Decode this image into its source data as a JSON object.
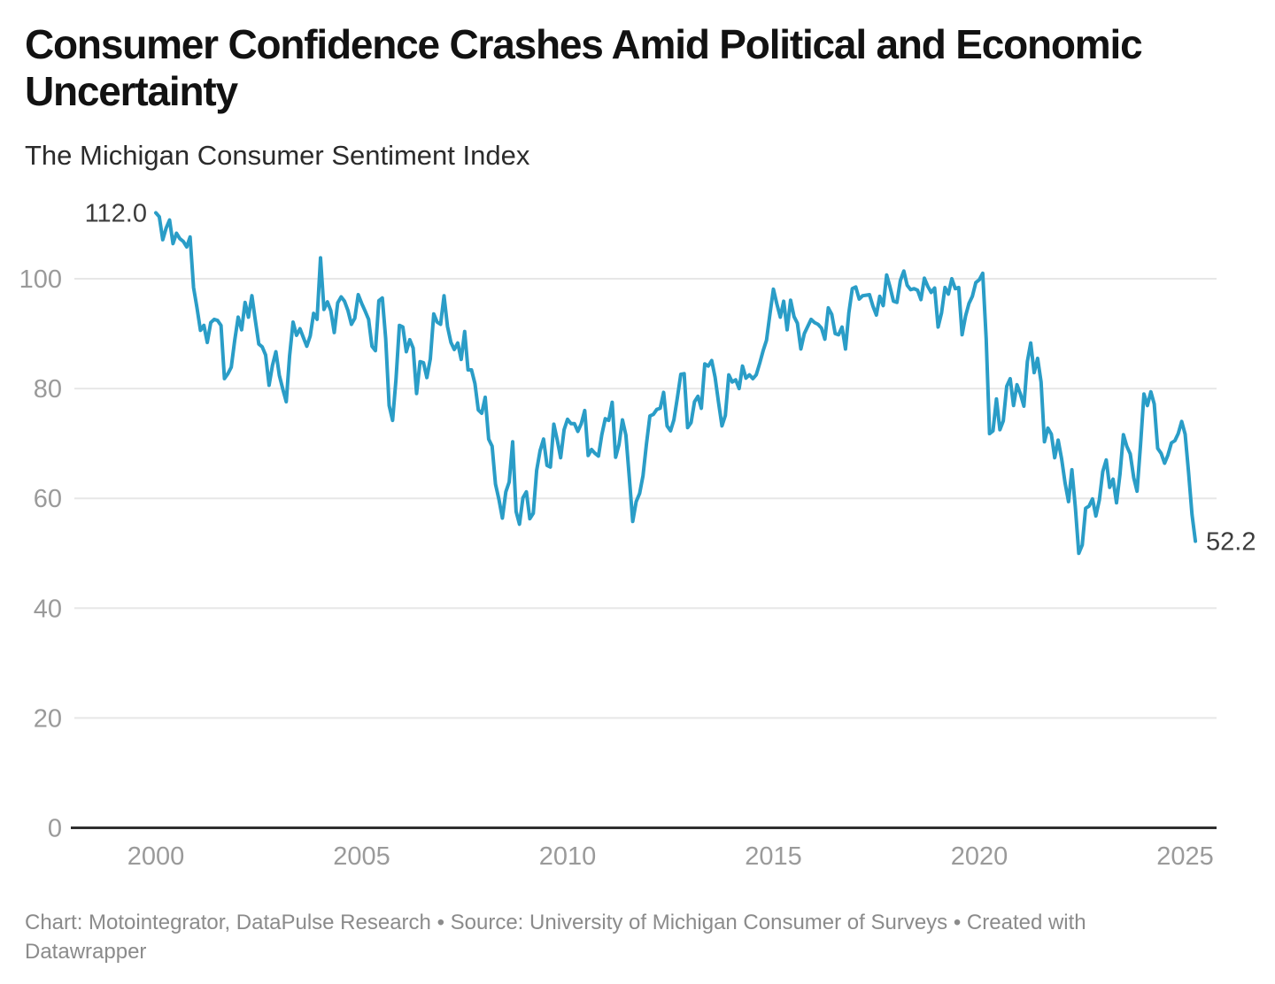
{
  "header": {
    "title": "Consumer Confidence Crashes Amid Political and Economic\nUncertainty",
    "subtitle": "The Michigan Consumer Sentiment Index"
  },
  "footer": {
    "text": "Chart: Motointegrator, DataPulse Research • Source: University of Michigan Consumer of Surveys • Created with\nDatawrapper"
  },
  "chart_data": {
    "type": "line",
    "title": "Consumer Confidence Crashes Amid Political and Economic Uncertainty",
    "subtitle": "The Michigan Consumer Sentiment Index",
    "start_label": "112.0",
    "end_label": "52.2",
    "y_ticks": [
      0,
      20,
      40,
      60,
      80,
      100
    ],
    "x_ticks": [
      2000,
      2005,
      2010,
      2015,
      2020,
      2025
    ],
    "ylim": [
      0,
      117
    ],
    "xlim": [
      1998,
      2025.8
    ],
    "grid": "horizontal",
    "legend": "none",
    "line_color": "#2A9DC7",
    "baseline_color": "#2f2f2f",
    "grid_color": "#e7e7e7",
    "axis_label_color": "#9a9a9a",
    "value_label_color": "#3c3c3c",
    "series": [
      {
        "name": "Michigan Consumer Sentiment Index",
        "frequency": "monthly",
        "x_start": 2000.0,
        "x_end": 2025.25,
        "values": [
          112.0,
          111.3,
          107.1,
          109.2,
          110.7,
          106.4,
          108.3,
          107.3,
          106.8,
          105.8,
          107.6,
          98.4,
          94.7,
          90.6,
          91.5,
          88.4,
          92.0,
          92.6,
          92.4,
          91.5,
          81.8,
          82.7,
          83.9,
          88.8,
          93.0,
          90.7,
          95.7,
          93.0,
          96.9,
          92.4,
          88.1,
          87.6,
          86.1,
          80.6,
          84.2,
          86.7,
          82.4,
          79.9,
          77.6,
          86.0,
          92.1,
          89.7,
          90.9,
          89.3,
          87.7,
          89.6,
          93.7,
          92.6,
          103.8,
          94.4,
          95.8,
          94.2,
          90.2,
          95.6,
          96.7,
          95.9,
          94.2,
          91.7,
          92.8,
          97.1,
          95.5,
          94.1,
          92.6,
          87.7,
          86.9,
          96.0,
          96.5,
          89.1,
          76.9,
          74.2,
          81.6,
          91.5,
          91.2,
          86.7,
          88.9,
          87.4,
          79.1,
          84.9,
          84.7,
          82.0,
          85.4,
          93.6,
          92.1,
          91.7,
          96.9,
          91.3,
          88.4,
          87.1,
          88.3,
          85.3,
          90.4,
          83.4,
          83.4,
          80.9,
          76.1,
          75.5,
          78.4,
          70.8,
          69.5,
          62.6,
          59.8,
          56.4,
          61.2,
          63.0,
          70.3,
          57.6,
          55.3,
          60.1,
          61.2,
          56.3,
          57.3,
          65.1,
          68.7,
          70.8,
          66.0,
          65.7,
          73.5,
          70.6,
          67.4,
          72.5,
          74.4,
          73.6,
          73.6,
          72.2,
          73.6,
          76.0,
          67.8,
          68.9,
          68.2,
          67.7,
          71.6,
          74.5,
          74.2,
          77.5,
          67.5,
          69.8,
          74.3,
          71.5,
          63.7,
          55.8,
          59.4,
          60.9,
          64.1,
          69.9,
          75.0,
          75.3,
          76.2,
          76.4,
          79.3,
          73.2,
          72.3,
          74.3,
          78.3,
          82.6,
          82.7,
          72.9,
          73.8,
          77.6,
          78.6,
          76.4,
          84.5,
          84.1,
          85.1,
          82.1,
          77.5,
          73.2,
          75.1,
          82.5,
          81.2,
          81.6,
          80.0,
          84.1,
          81.9,
          82.5,
          81.8,
          82.5,
          84.6,
          86.9,
          88.8,
          93.6,
          98.1,
          95.4,
          93.0,
          95.9,
          90.7,
          96.1,
          93.1,
          91.9,
          87.2,
          90.0,
          91.3,
          92.6,
          92.0,
          91.7,
          91.0,
          89.0,
          94.7,
          93.5,
          90.0,
          89.8,
          91.2,
          87.2,
          93.8,
          98.2,
          98.5,
          96.3,
          96.9,
          97.0,
          97.1,
          95.0,
          93.4,
          96.8,
          95.1,
          100.7,
          98.5,
          95.9,
          95.7,
          99.7,
          101.4,
          98.8,
          98.0,
          98.2,
          97.9,
          96.2,
          100.1,
          98.6,
          97.5,
          98.3,
          91.2,
          93.8,
          98.4,
          97.2,
          100.0,
          98.2,
          98.4,
          89.8,
          93.2,
          95.5,
          96.8,
          99.3,
          99.8,
          101.0,
          89.1,
          71.8,
          72.3,
          78.1,
          72.5,
          74.1,
          80.4,
          81.8,
          76.9,
          80.7,
          79.0,
          76.8,
          84.9,
          88.3,
          82.9,
          85.5,
          81.2,
          70.3,
          72.8,
          71.7,
          67.4,
          70.6,
          67.2,
          62.8,
          59.4,
          65.2,
          58.4,
          50.0,
          51.5,
          58.2,
          58.6,
          59.9,
          56.8,
          59.7,
          64.9,
          67.0,
          62.0,
          63.5,
          59.2,
          64.4,
          71.6,
          69.5,
          68.1,
          63.8,
          61.3,
          69.7,
          79.0,
          76.9,
          79.4,
          77.2,
          69.1,
          68.2,
          66.4,
          67.9,
          70.1,
          70.5,
          71.8,
          74.0,
          71.7,
          64.7,
          57.0,
          52.2
        ]
      }
    ]
  }
}
